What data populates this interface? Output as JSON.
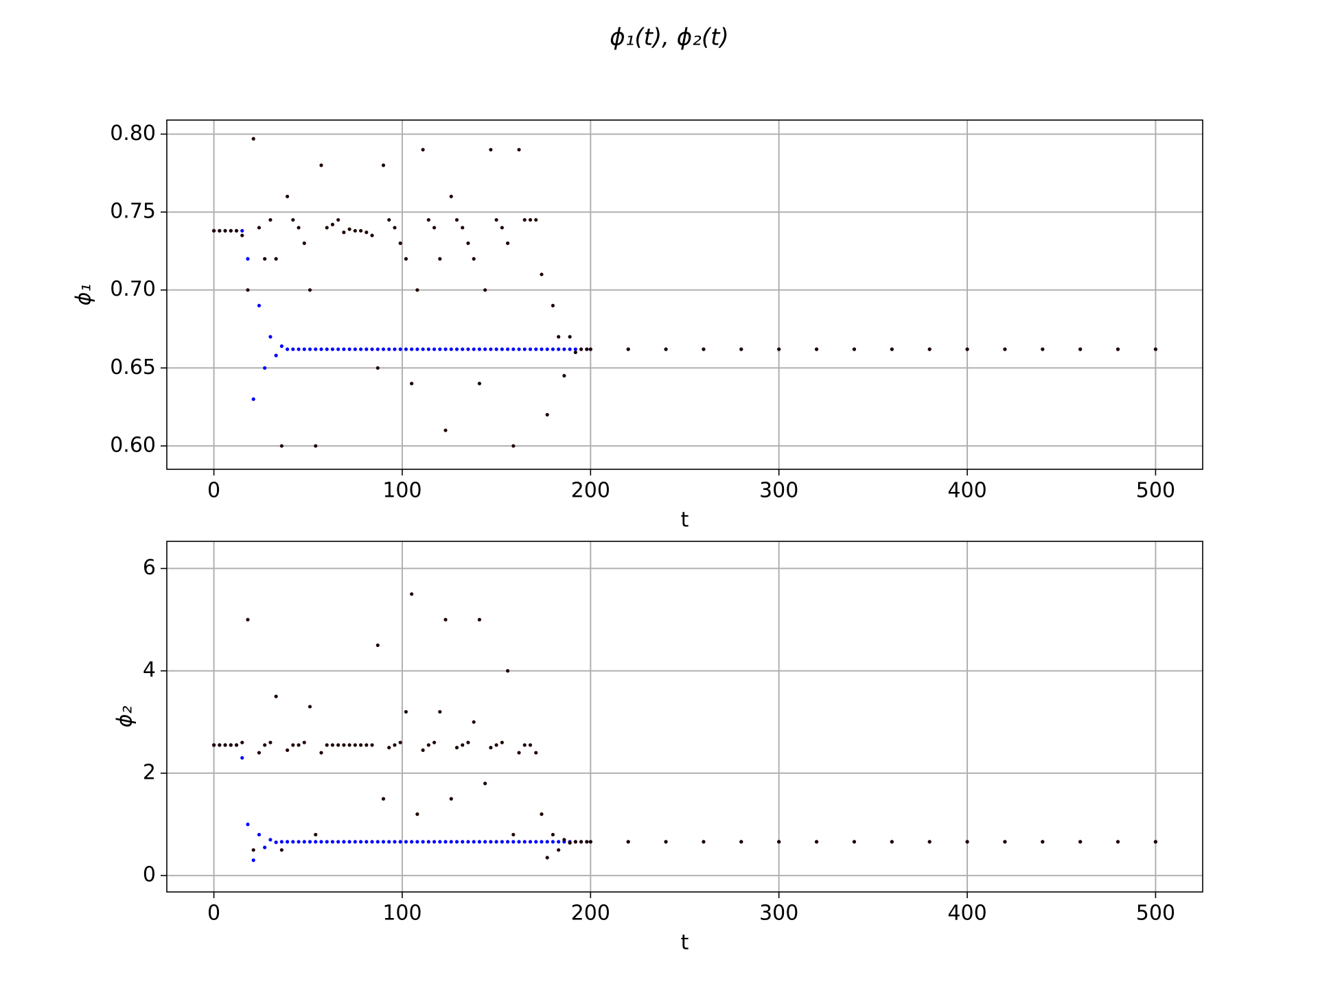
{
  "title": "ϕ₁(t), ϕ₂(t)",
  "chart_data": [
    {
      "type": "scatter",
      "xlabel": "t",
      "ylabel": "ϕ₁",
      "grid": true,
      "xlim": [
        -25,
        525
      ],
      "xticks": [
        0,
        100,
        200,
        300,
        400,
        500
      ],
      "ylim": [
        0.585,
        0.809
      ],
      "yticks": [
        {
          "value": 0.6,
          "label": "0.60"
        },
        {
          "value": 0.65,
          "label": "0.65"
        },
        {
          "value": 0.7,
          "label": "0.70"
        },
        {
          "value": 0.75,
          "label": "0.75"
        },
        {
          "value": 0.8,
          "label": "0.80"
        }
      ],
      "x": [
        0,
        3,
        6,
        9,
        12,
        15,
        18,
        21,
        24,
        27,
        30,
        33,
        36,
        39,
        42,
        45,
        48,
        51,
        54,
        57,
        60,
        63,
        66,
        69,
        72,
        75,
        78,
        81,
        84,
        87,
        90,
        93,
        96,
        99,
        102,
        105,
        108,
        111,
        114,
        117,
        120,
        123,
        126,
        129,
        132,
        135,
        138,
        141,
        144,
        147,
        150,
        153,
        156,
        159,
        162,
        165,
        168,
        171,
        174,
        177,
        180,
        183,
        186,
        189,
        192,
        195,
        198,
        200,
        220,
        240,
        260,
        280,
        300,
        320,
        340,
        360,
        380,
        400,
        420,
        440,
        460,
        480,
        500
      ],
      "series": [
        {
          "color": "#0000ff",
          "values": [
            0.738,
            0.738,
            0.738,
            0.738,
            0.738,
            0.738,
            0.72,
            0.63,
            0.69,
            0.65,
            0.67,
            0.658,
            0.664,
            0.662,
            0.662,
            0.662,
            0.662,
            0.662,
            0.662,
            0.662,
            0.662,
            0.662,
            0.662,
            0.662,
            0.662,
            0.662,
            0.662,
            0.662,
            0.662,
            0.662,
            0.662,
            0.662,
            0.662,
            0.662,
            0.662,
            0.662,
            0.662,
            0.662,
            0.662,
            0.662,
            0.662,
            0.662,
            0.662,
            0.662,
            0.662,
            0.662,
            0.662,
            0.662,
            0.662,
            0.662,
            0.662,
            0.662,
            0.662,
            0.662,
            0.662,
            0.662,
            0.662,
            0.662,
            0.662,
            0.662,
            0.662,
            0.662,
            0.662,
            0.662,
            0.662,
            0.662,
            0.662,
            0.662,
            0.662,
            0.662,
            0.662,
            0.662,
            0.662,
            0.662,
            0.662,
            0.662,
            0.662,
            0.662,
            0.662,
            0.662,
            0.662,
            0.662,
            0.662
          ]
        },
        {
          "color": "#1f0500",
          "values": [
            0.738,
            0.738,
            0.738,
            0.738,
            0.738,
            0.735,
            0.7,
            0.797,
            0.74,
            0.72,
            0.745,
            0.72,
            0.6,
            0.76,
            0.745,
            0.74,
            0.73,
            0.7,
            0.6,
            0.78,
            0.74,
            0.742,
            0.745,
            0.737,
            0.739,
            0.738,
            0.738,
            0.737,
            0.735,
            0.65,
            0.78,
            0.745,
            0.74,
            0.73,
            0.72,
            0.64,
            0.7,
            0.79,
            0.745,
            0.74,
            0.72,
            0.61,
            0.76,
            0.745,
            0.74,
            0.73,
            0.72,
            0.64,
            0.7,
            0.79,
            0.745,
            0.74,
            0.73,
            0.6,
            0.79,
            0.745,
            0.745,
            0.745,
            0.71,
            0.62,
            0.69,
            0.67,
            0.645,
            0.67,
            0.66,
            0.662,
            0.662,
            0.662,
            0.662,
            0.662,
            0.662,
            0.662,
            0.662,
            0.662,
            0.662,
            0.662,
            0.662,
            0.662,
            0.662,
            0.662,
            0.662,
            0.662,
            0.662
          ]
        }
      ]
    },
    {
      "type": "scatter",
      "xlabel": "t",
      "ylabel": "ϕ₂",
      "grid": true,
      "xlim": [
        -25,
        525
      ],
      "xticks": [
        0,
        100,
        200,
        300,
        400,
        500
      ],
      "ylim": [
        -0.32,
        6.53
      ],
      "yticks": [
        0,
        2,
        4,
        6
      ],
      "x": [
        0,
        3,
        6,
        9,
        12,
        15,
        18,
        21,
        24,
        27,
        30,
        33,
        36,
        39,
        42,
        45,
        48,
        51,
        54,
        57,
        60,
        63,
        66,
        69,
        72,
        75,
        78,
        81,
        84,
        87,
        90,
        93,
        96,
        99,
        102,
        105,
        108,
        111,
        114,
        117,
        120,
        123,
        126,
        129,
        132,
        135,
        138,
        141,
        144,
        147,
        150,
        153,
        156,
        159,
        162,
        165,
        168,
        171,
        174,
        177,
        180,
        183,
        186,
        189,
        192,
        195,
        198,
        200,
        220,
        240,
        260,
        280,
        300,
        320,
        340,
        360,
        380,
        400,
        420,
        440,
        460,
        480,
        500
      ],
      "series": [
        {
          "color": "#0000ff",
          "values": [
            2.55,
            2.55,
            2.55,
            2.55,
            2.55,
            2.3,
            1.0,
            0.3,
            0.8,
            0.55,
            0.7,
            0.65,
            0.66,
            0.66,
            0.66,
            0.66,
            0.66,
            0.66,
            0.66,
            0.66,
            0.66,
            0.66,
            0.66,
            0.66,
            0.66,
            0.66,
            0.66,
            0.66,
            0.66,
            0.66,
            0.66,
            0.66,
            0.66,
            0.66,
            0.66,
            0.66,
            0.66,
            0.66,
            0.66,
            0.66,
            0.66,
            0.66,
            0.66,
            0.66,
            0.66,
            0.66,
            0.66,
            0.66,
            0.66,
            0.66,
            0.66,
            0.66,
            0.66,
            0.66,
            0.66,
            0.66,
            0.66,
            0.66,
            0.66,
            0.66,
            0.66,
            0.66,
            0.66,
            0.66,
            0.66,
            0.66,
            0.66,
            0.66,
            0.66,
            0.66,
            0.66,
            0.66,
            0.66,
            0.66,
            0.66,
            0.66,
            0.66,
            0.66,
            0.66,
            0.66,
            0.66,
            0.66,
            0.66
          ]
        },
        {
          "color": "#1f0500",
          "values": [
            2.55,
            2.55,
            2.55,
            2.55,
            2.55,
            2.6,
            5.0,
            0.5,
            2.4,
            2.55,
            2.6,
            3.5,
            0.5,
            2.45,
            2.55,
            2.55,
            2.6,
            3.3,
            0.8,
            2.4,
            2.55,
            2.55,
            2.55,
            2.55,
            2.55,
            2.55,
            2.55,
            2.55,
            2.55,
            4.5,
            1.5,
            2.5,
            2.55,
            2.6,
            3.2,
            5.5,
            1.2,
            2.45,
            2.55,
            2.6,
            3.2,
            5.0,
            1.5,
            2.5,
            2.55,
            2.6,
            3.0,
            5.0,
            1.8,
            2.5,
            2.55,
            2.6,
            4.0,
            0.8,
            2.4,
            2.55,
            2.55,
            2.4,
            1.2,
            0.35,
            0.8,
            0.5,
            0.7,
            0.64,
            0.66,
            0.66,
            0.66,
            0.66,
            0.66,
            0.66,
            0.66,
            0.66,
            0.66,
            0.66,
            0.66,
            0.66,
            0.66,
            0.66,
            0.66,
            0.66,
            0.66,
            0.66,
            0.66
          ]
        }
      ]
    }
  ]
}
